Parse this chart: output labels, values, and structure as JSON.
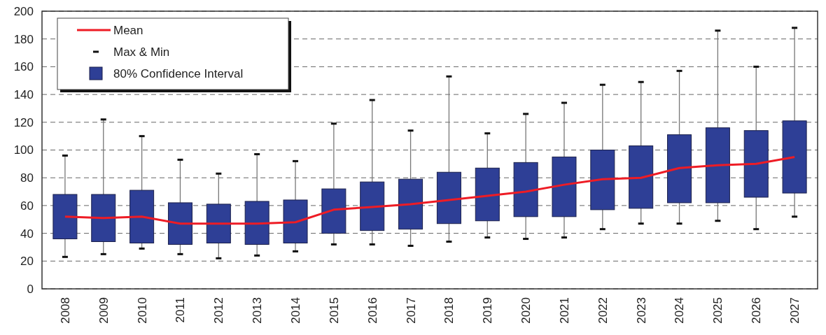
{
  "chart_data": {
    "type": "box",
    "x": [
      2008,
      2009,
      2010,
      2011,
      2012,
      2013,
      2014,
      2015,
      2016,
      2017,
      2018,
      2019,
      2020,
      2021,
      2022,
      2023,
      2024,
      2025,
      2026,
      2027
    ],
    "xlim": [
      2007.4,
      2027.6
    ],
    "xticks": [
      2008,
      2009,
      2010,
      2011,
      2012,
      2013,
      2014,
      2015,
      2016,
      2017,
      2018,
      2019,
      2020,
      2021,
      2022,
      2023,
      2024,
      2025,
      2026,
      2027
    ],
    "ylim": [
      0,
      200
    ],
    "yticks": [
      0,
      20,
      40,
      60,
      80,
      100,
      120,
      140,
      160,
      180,
      200
    ],
    "grid": "y",
    "legend": "top left",
    "series": [
      {
        "name": "Mean",
        "type": "line",
        "color": "#ee1c25",
        "values": [
          52,
          51,
          52,
          47,
          47,
          47,
          48,
          57,
          59,
          61,
          64,
          67,
          70,
          75,
          79,
          80,
          87,
          89,
          90,
          95
        ]
      },
      {
        "name": "Max & Min",
        "type": "scatter",
        "color": "#111111",
        "x": [
          2008,
          2009,
          2010,
          2011,
          2012,
          2013,
          2014,
          2015,
          2016,
          2017,
          2018,
          2019,
          2020,
          2021,
          2022,
          2023,
          2024,
          2025,
          2026,
          2027,
          2008,
          2009,
          2010,
          2011,
          2012,
          2013,
          2014,
          2015,
          2016,
          2017,
          2018,
          2019,
          2020,
          2021,
          2022,
          2023,
          2024,
          2025,
          2026,
          2027
        ],
        "values": [
          23,
          25,
          29,
          25,
          22,
          24,
          27,
          32,
          32,
          31,
          34,
          37,
          36,
          37,
          43,
          47,
          47,
          49,
          43,
          52,
          96,
          122,
          110,
          93,
          83,
          97,
          92,
          119,
          136,
          114,
          153,
          112,
          126,
          134,
          147,
          149,
          157,
          186,
          160,
          188
        ]
      },
      {
        "name": "80% Confidence Interval",
        "color": "#2e3f96",
        "boxes": [
          {
            "low": 23,
            "q1": 36,
            "q3": 68,
            "high": 96
          },
          {
            "low": 25,
            "q1": 34,
            "q3": 68,
            "high": 122
          },
          {
            "low": 29,
            "q1": 33,
            "q3": 71,
            "high": 110
          },
          {
            "low": 25,
            "q1": 32,
            "q3": 62,
            "high": 93
          },
          {
            "low": 22,
            "q1": 33,
            "q3": 61,
            "high": 83
          },
          {
            "low": 24,
            "q1": 32,
            "q3": 63,
            "high": 97
          },
          {
            "low": 27,
            "q1": 33,
            "q3": 64,
            "high": 92
          },
          {
            "low": 32,
            "q1": 40,
            "q3": 72,
            "high": 119
          },
          {
            "low": 32,
            "q1": 42,
            "q3": 77,
            "high": 136
          },
          {
            "low": 31,
            "q1": 43,
            "q3": 79,
            "high": 114
          },
          {
            "low": 34,
            "q1": 47,
            "q3": 84,
            "high": 153
          },
          {
            "low": 37,
            "q1": 49,
            "q3": 87,
            "high": 112
          },
          {
            "low": 36,
            "q1": 52,
            "q3": 91,
            "high": 126
          },
          {
            "low": 37,
            "q1": 52,
            "q3": 95,
            "high": 134
          },
          {
            "low": 43,
            "q1": 57,
            "q3": 100,
            "high": 147
          },
          {
            "low": 47,
            "q1": 58,
            "q3": 103,
            "high": 149
          },
          {
            "low": 47,
            "q1": 62,
            "q3": 111,
            "high": 157
          },
          {
            "low": 49,
            "q1": 62,
            "q3": 116,
            "high": 186
          },
          {
            "low": 43,
            "q1": 66,
            "q3": 114,
            "high": 160
          },
          {
            "low": 52,
            "q1": 69,
            "q3": 121,
            "high": 188
          }
        ]
      }
    ]
  }
}
